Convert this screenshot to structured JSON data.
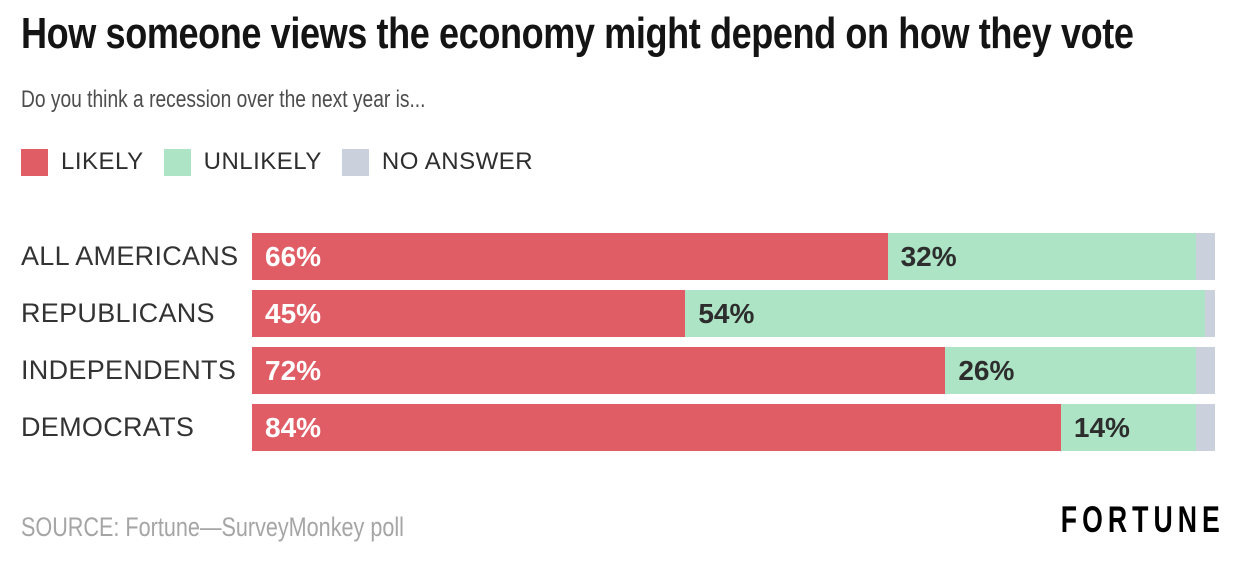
{
  "header": {
    "title": "How someone views the economy might depend on how they vote",
    "subtitle": "Do you think a recession over the next year is..."
  },
  "legend": [
    {
      "label": "LIKELY",
      "color": "#e05d66"
    },
    {
      "label": "UNLIKELY",
      "color": "#ace4c5"
    },
    {
      "label": "NO ANSWER",
      "color": "#cbd1dc"
    }
  ],
  "chart_data": {
    "type": "bar",
    "orientation": "horizontal",
    "stacked": true,
    "title": "How someone views the economy might depend on how they vote",
    "subtitle": "Do you think a recession over the next year is...",
    "categories": [
      "ALL AMERICANS",
      "REPUBLICANS",
      "INDEPENDENTS",
      "DEMOCRATS"
    ],
    "series": [
      {
        "name": "LIKELY",
        "color": "#e05d66",
        "values": [
          66,
          45,
          72,
          84
        ]
      },
      {
        "name": "UNLIKELY",
        "color": "#ace4c5",
        "values": [
          32,
          54,
          26,
          14
        ]
      },
      {
        "name": "NO ANSWER",
        "color": "#cbd1dc",
        "values": [
          2,
          1,
          2,
          2
        ]
      }
    ],
    "value_label_suffix": "%",
    "xlim": [
      0,
      100
    ],
    "grid": false,
    "legend_position": "top-left"
  },
  "footer": {
    "source": "SOURCE: Fortune—SurveyMonkey poll",
    "brand": "FORTUNE"
  },
  "colors": {
    "background": "#ffffff",
    "title_text": "#141414",
    "subtitle_text": "#4d4d4d",
    "label_text": "#333333",
    "likely_bar": "#e05d66",
    "unlikely_bar": "#ace4c5",
    "no_answer_bar": "#cbd1dc",
    "likely_value_text": "#ffffff",
    "unlikely_value_text": "#2d2d2d",
    "source_text": "#a5a5a5",
    "brand_text": "#000000"
  }
}
